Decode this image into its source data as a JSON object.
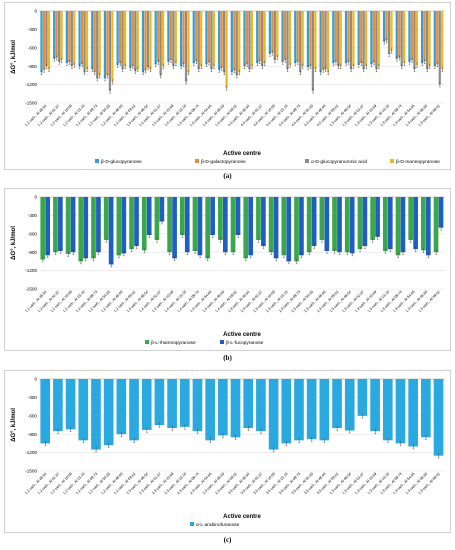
{
  "chart_data": [
    {
      "type": "bar",
      "panel_label": "(a)",
      "ylabel": "ΔG°, kJ/mol",
      "xlabel": "Active centre",
      "ylim": [
        -1500,
        0
      ],
      "yticks": [
        0,
        -300,
        -600,
        -900,
        -1200,
        -1500
      ],
      "grid": true,
      "legend_position": "bottom",
      "categories": [
        "1,2 carb., Al 48.54",
        "1,2 carb., Al 62.37",
        "1,2 carb., Al 10.69",
        "1,2 carb., Al 23.10",
        "1,2 carb., Al 09.73",
        "1,2 carb., Al 54.65",
        "1,2 carb., Al 48.60",
        "1,2 carb., Al 69.62",
        "1,6 carb., Al 48.54",
        "1,6 carb., Al 62.37",
        "1,6 carb., Al 10.69",
        "1,6 carb., Al 23.10",
        "1,6 carb., Al 09.73",
        "1,6 carb., Al 54.65",
        "1,6 carb., Al 48.60",
        "1,6 carb., Al 69.62",
        "4,6 carb., Al 48.54",
        "4,6 carb., Al 62.37",
        "4,6 carb., Al 10.69",
        "4,6 carb., Al 23.10",
        "4,6 carb., Al 09.73",
        "4,6 carb., Al 54.65",
        "4,6 carb., Al 48.60",
        "4,6 carb., Al 69.62",
        "1,3 carb., Al 48.54",
        "1,3 carb., Al 62.37",
        "1,3 carb., Al 10.69",
        "1,3 carb., Al 23.10",
        "1,3 carb., Al 09.73",
        "1,3 carb., Al 54.65",
        "1,3 carb., Al 48.60",
        "1,3 carb., Al 69.62"
      ],
      "series": [
        {
          "name": "β-D-glucopyranose",
          "color": "#2e9fd8",
          "values": [
            -1000,
            -780,
            -850,
            -900,
            -950,
            -1100,
            -880,
            -930,
            -1000,
            -870,
            -830,
            -900,
            -850,
            -870,
            -960,
            -1000,
            -900,
            -850,
            -700,
            -830,
            -850,
            -920,
            -1000,
            -850,
            -850,
            -880,
            -870,
            -500,
            -780,
            -830,
            -850,
            -900
          ]
        },
        {
          "name": "β-D-galactopyranose",
          "color": "#f08a2e",
          "values": [
            -960,
            -760,
            -830,
            -870,
            -1000,
            -1050,
            -850,
            -900,
            -970,
            -830,
            -800,
            -870,
            -820,
            -840,
            -930,
            -970,
            -870,
            -820,
            -680,
            -800,
            -830,
            -900,
            -960,
            -830,
            -830,
            -850,
            -840,
            -480,
            -760,
            -800,
            -820,
            -870
          ]
        },
        {
          "name": "α-D-glucopyranuronic acid",
          "color": "#8c8c8c",
          "values": [
            -900,
            -830,
            -900,
            -1000,
            -1100,
            -1300,
            -950,
            -980,
            -920,
            -1050,
            -900,
            -1150,
            -950,
            -950,
            -1000,
            -1050,
            -950,
            -900,
            -800,
            -950,
            -1000,
            -1300,
            -950,
            -900,
            -950,
            -950,
            -950,
            -700,
            -900,
            -950,
            -950,
            -1200
          ]
        },
        {
          "name": "β-D-mannopyranose",
          "color": "#f0b81c",
          "values": [
            -950,
            -800,
            -880,
            -950,
            -1050,
            -1150,
            -900,
            -950,
            -950,
            -900,
            -850,
            -1000,
            -900,
            -900,
            -1250,
            -1000,
            -900,
            -850,
            -750,
            -880,
            -900,
            -950,
            -1000,
            -900,
            -900,
            -900,
            -900,
            -650,
            -850,
            -880,
            -900,
            -950
          ]
        }
      ]
    },
    {
      "type": "bar",
      "panel_label": "(b)",
      "ylabel": "ΔG°, kJ/mol",
      "xlabel": "Active centre",
      "ylim": [
        -1500,
        0
      ],
      "yticks": [
        0,
        -300,
        -600,
        -900,
        -1200,
        -1500
      ],
      "grid": true,
      "legend_position": "bottom",
      "categories": [
        "1,2 carb., Al 48.54",
        "1,2 carb., Al 62.37",
        "1,2 carb., Al 10.69",
        "1,2 carb., Al 23.10",
        "1,2 carb., Al 09.73",
        "1,2 carb., Al 54.65",
        "1,2 carb., Al 48.60",
        "1,2 carb., Al 69.62",
        "1,4 carb., Al 48.54",
        "1,4 carb., Al 62.37",
        "1,4 carb., Al 10.69",
        "1,4 carb., Al 23.10",
        "1,4 carb., Al 09.73",
        "1,4 carb., Al 54.65",
        "1,4 carb., Al 48.60",
        "1,4 carb., Al 69.62",
        "2,3 carb., Al 48.54",
        "2,3 carb., Al 62.37",
        "2,3 carb., Al 10.69",
        "2,3 carb., Al 23.10",
        "2,3 carb., Al 09.73",
        "2,3 carb., Al 54.65",
        "2,3 carb., Al 48.60",
        "2,3 carb., Al 69.62",
        "1,3 carb., Al 48.54",
        "1,3 carb., Al 62.37",
        "1,3 carb., Al 10.69",
        "1,3 carb., Al 23.10",
        "1,3 carb., Al 09.73",
        "1,3 carb., Al 54.65",
        "1,3 carb., Al 48.60",
        "1,3 carb., Al 69.62"
      ],
      "series": [
        {
          "name": "β-L-rhamnopyranose",
          "color": "#3aa84a",
          "values": [
            -1020,
            -900,
            -930,
            -1050,
            -1000,
            -700,
            -950,
            -850,
            -870,
            -700,
            -900,
            -620,
            -880,
            -1000,
            -700,
            -900,
            -1000,
            -700,
            -900,
            -950,
            -1050,
            -900,
            -700,
            -880,
            -900,
            -850,
            -700,
            -880,
            -950,
            -700,
            -870,
            -900
          ]
        },
        {
          "name": "β-L-fucopyranose",
          "color": "#1f5fbf",
          "values": [
            -950,
            -880,
            -900,
            -1000,
            -900,
            -1100,
            -920,
            -800,
            -620,
            -400,
            -1000,
            -900,
            -950,
            -620,
            -900,
            -620,
            -950,
            -800,
            -1000,
            -1050,
            -950,
            -800,
            -880,
            -900,
            -920,
            -800,
            -650,
            -850,
            -900,
            -850,
            -950,
            -500
          ]
        }
      ]
    },
    {
      "type": "bar",
      "panel_label": "(c)",
      "ylabel": "ΔG°, kJ/mol",
      "xlabel": "Active centre",
      "ylim": [
        -1500,
        0
      ],
      "yticks": [
        0,
        -300,
        -600,
        -900,
        -1200,
        -1500
      ],
      "grid": true,
      "legend_position": "bottom",
      "categories": [
        "1,2 carb., Al 48.54",
        "1,2 carb., Al 62.37",
        "1,2 carb., Al 10.69",
        "1,2 carb., Al 23.10",
        "1,2 carb., Al 09.73",
        "1,2 carb., Al 54.65",
        "1,2 carb., Al 48.60",
        "1,2 carb., Al 69.62",
        "2,3 carb., Al 48.54",
        "2,3 carb., Al 62.37",
        "2,3 carb., Al 10.69",
        "2,3 carb., Al 23.10",
        "2,3 carb., Al 09.73",
        "2,3 carb., Al 54.65",
        "2,3 carb., Al 48.60",
        "2,3 carb., Al 69.62",
        "3,5 carb., Al 48.54",
        "3,5 carb., Al 62.37",
        "3,5 carb., Al 10.69",
        "3,5 carb., Al 23.10",
        "3,5 carb., Al 09.73",
        "3,5 carb., Al 54.65",
        "3,5 carb., Al 48.60",
        "3,5 carb., Al 69.62",
        "1,3 carb., Al 48.54",
        "1,3 carb., Al 62.37",
        "1,3 carb., Al 10.69",
        "1,3 carb., Al 23.10",
        "1,3 carb., Al 09.73",
        "1,3 carb., Al 54.65",
        "1,3 carb., Al 48.60",
        "1,3 carb., Al 69.62"
      ],
      "series": [
        {
          "name": "α-L-arabinofuranose",
          "color": "#2aa8e0",
          "values": [
            -1050,
            -850,
            -820,
            -1000,
            -1150,
            -1080,
            -900,
            -1000,
            -830,
            -750,
            -800,
            -780,
            -850,
            -1000,
            -920,
            -950,
            -800,
            -850,
            -1150,
            -1050,
            -1000,
            -980,
            -1000,
            -800,
            -840,
            -600,
            -850,
            -1000,
            -1050,
            -1100,
            -950,
            -1250
          ]
        }
      ]
    }
  ]
}
